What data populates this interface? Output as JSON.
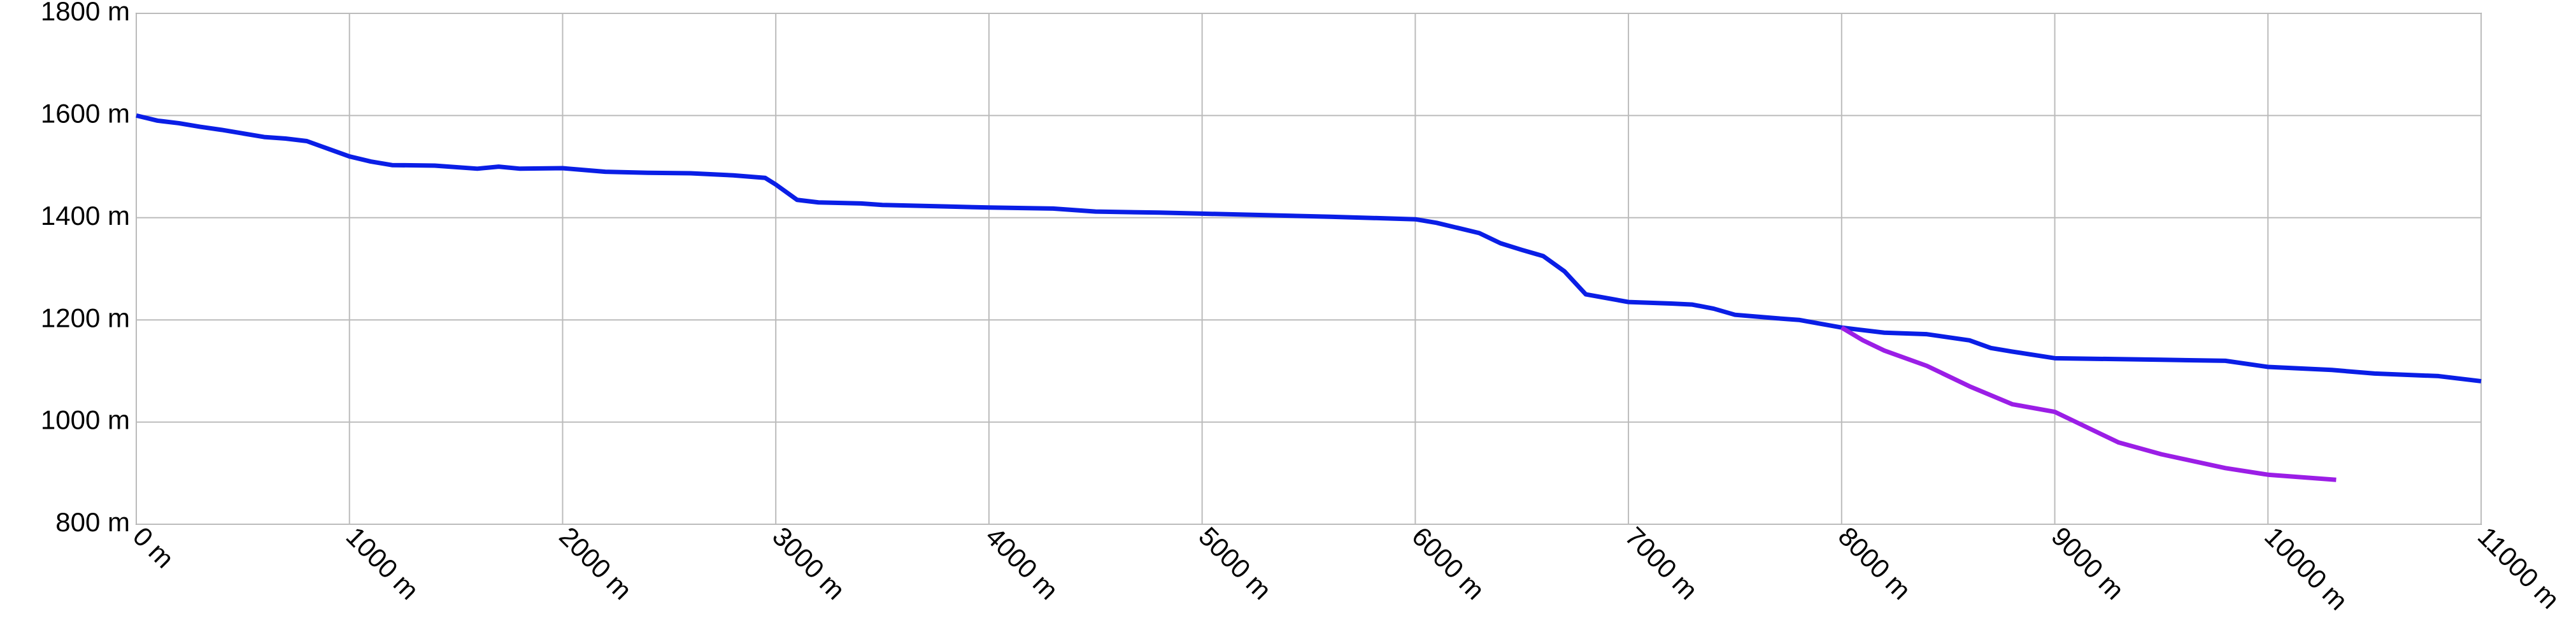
{
  "chart_data": {
    "type": "line",
    "xlim": [
      0,
      11000
    ],
    "xticks": [
      {
        "value": 0,
        "label": "0 m"
      },
      {
        "value": 1000,
        "label": "1000 m"
      },
      {
        "value": 2000,
        "label": "2000 m"
      },
      {
        "value": 3000,
        "label": "3000 m"
      },
      {
        "value": 4000,
        "label": "4000 m"
      },
      {
        "value": 5000,
        "label": "5000 m"
      },
      {
        "value": 6000,
        "label": "6000 m"
      },
      {
        "value": 7000,
        "label": "7000 m"
      },
      {
        "value": 8000,
        "label": "8000 m"
      },
      {
        "value": 9000,
        "label": "9000 m"
      },
      {
        "value": 10000,
        "label": "10000 m"
      },
      {
        "value": 11000,
        "label": "11000 m"
      }
    ],
    "ylim": [
      800,
      1800
    ],
    "yticks": [
      {
        "value": 800,
        "label": "800 m"
      },
      {
        "value": 1000,
        "label": "1000 m"
      },
      {
        "value": 1200,
        "label": "1200 m"
      },
      {
        "value": 1400,
        "label": "1400 m"
      },
      {
        "value": 1600,
        "label": "1600 m"
      },
      {
        "value": 1800,
        "label": "1800 m"
      }
    ],
    "grid": true,
    "series": [
      {
        "color": "#0a1ee6",
        "x": [
          0,
          100,
          200,
          300,
          400,
          500,
          600,
          700,
          800,
          900,
          1000,
          1100,
          1200,
          1400,
          1600,
          1700,
          1800,
          2000,
          2200,
          2400,
          2600,
          2800,
          2950,
          3000,
          3100,
          3200,
          3400,
          3500,
          3800,
          4000,
          4300,
          4500,
          4800,
          5000,
          5300,
          5600,
          6000,
          6100,
          6200,
          6300,
          6400,
          6500,
          6600,
          6700,
          6800,
          7000,
          7200,
          7300,
          7400,
          7500,
          7700,
          7800,
          8000,
          8200,
          8400,
          8600,
          8700,
          8800,
          9000,
          9500,
          9800,
          10000,
          10300,
          10500,
          10800,
          11000
        ],
        "values": [
          1600,
          1590,
          1585,
          1578,
          1572,
          1565,
          1558,
          1555,
          1550,
          1535,
          1520,
          1510,
          1503,
          1502,
          1496,
          1500,
          1496,
          1497,
          1490,
          1488,
          1487,
          1483,
          1478,
          1465,
          1435,
          1430,
          1428,
          1425,
          1422,
          1420,
          1418,
          1412,
          1410,
          1408,
          1405,
          1402,
          1397,
          1390,
          1380,
          1370,
          1350,
          1337,
          1325,
          1295,
          1250,
          1235,
          1232,
          1230,
          1222,
          1210,
          1203,
          1200,
          1185,
          1175,
          1172,
          1160,
          1145,
          1138,
          1125,
          1122,
          1120,
          1108,
          1102,
          1095,
          1090,
          1080
        ]
      },
      {
        "color": "#9b1ee6",
        "x": [
          8000,
          8100,
          8200,
          8400,
          8600,
          8800,
          9000,
          9100,
          9300,
          9500,
          9800,
          10000,
          10320
        ],
        "values": [
          1185,
          1160,
          1140,
          1110,
          1070,
          1035,
          1020,
          1000,
          960,
          937,
          910,
          897,
          887
        ]
      }
    ]
  }
}
